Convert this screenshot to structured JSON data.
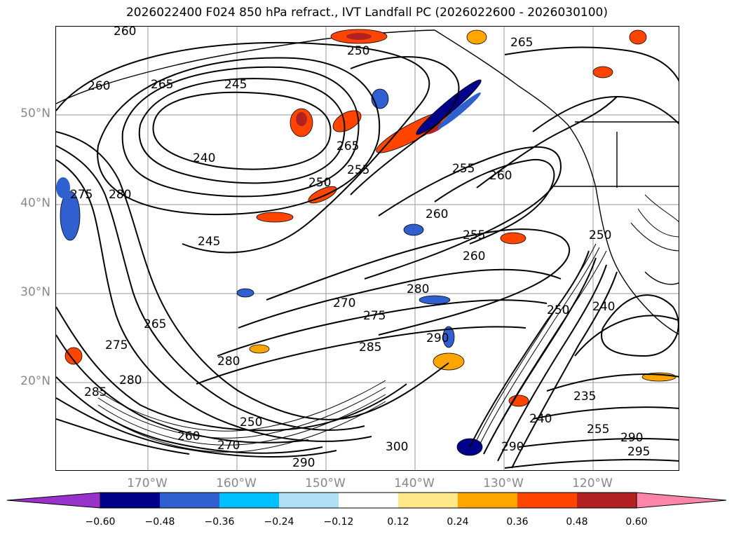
{
  "title": "2026022400 F024 850 hPa refract., IVT Landfall PC (2026022600 - 2026030100)",
  "lat_labels": [
    "50°N",
    "40°N",
    "30°N",
    "20°N"
  ],
  "lon_labels": [
    "170°W",
    "160°W",
    "150°W",
    "140°W",
    "130°W",
    "120°W"
  ],
  "colorbar": {
    "ticks": [
      "−0.60",
      "−0.48",
      "−0.36",
      "−0.24",
      "−0.12",
      "0.12",
      "0.24",
      "0.36",
      "0.48",
      "0.60"
    ],
    "colors": [
      "#9932cc",
      "#00008b",
      "#3060d0",
      "#00bfff",
      "#b0e0f8",
      "#ffffff",
      "#ffe88a",
      "#ffa500",
      "#ff4500",
      "#b22222",
      "#ff85a8",
      "#ff85a8"
    ]
  },
  "contour_labels": [
    "260",
    "250",
    "265",
    "260",
    "245",
    "265",
    "240",
    "250",
    "255",
    "255",
    "260",
    "265",
    "275",
    "245",
    "280",
    "250",
    "260",
    "255",
    "260",
    "270",
    "275",
    "280",
    "280",
    "285",
    "290",
    "250",
    "240",
    "235",
    "240",
    "255",
    "290",
    "295",
    "300",
    "290",
    "260",
    "250",
    "285",
    "270",
    "265",
    "275",
    "280",
    "290"
  ]
}
